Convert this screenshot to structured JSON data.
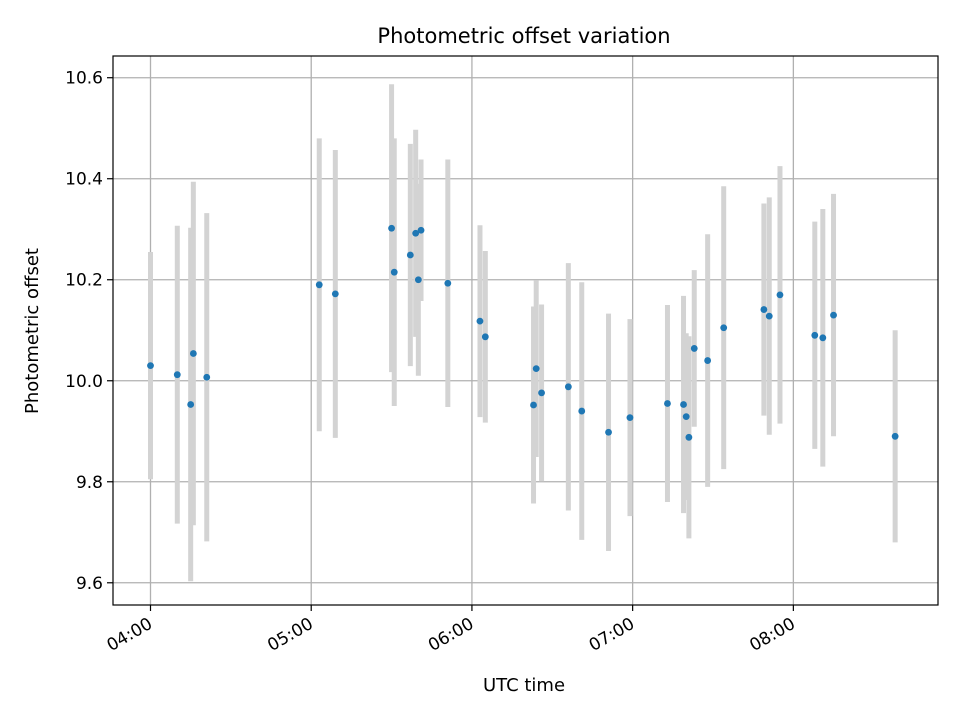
{
  "chart_data": {
    "type": "scatter",
    "title": "Photometric offset variation",
    "xlabel": "UTC time",
    "ylabel": "Photometric offset",
    "x_ticks": [
      "04:00",
      "05:00",
      "06:00",
      "07:00",
      "08:00"
    ],
    "x_tick_minutes": [
      240,
      300,
      360,
      420,
      480
    ],
    "y_ticks": [
      "9.6",
      "9.8",
      "10.0",
      "10.2",
      "10.4",
      "10.6"
    ],
    "y_tick_values": [
      9.6,
      9.8,
      10.0,
      10.2,
      10.4,
      10.6
    ],
    "xlim": [
      "03:46",
      "08:54"
    ],
    "ylim": [
      9.556,
      10.643
    ],
    "grid": true,
    "colors": {
      "point": "#1f77b4",
      "errorbar": "#d3d3d3",
      "grid": "#b0b0b0",
      "axis": "#000000"
    },
    "series": [
      {
        "points": [
          {
            "x": "04:00",
            "y": 10.03,
            "err": 0.225
          },
          {
            "x": "04:10",
            "y": 10.012,
            "err": 0.295
          },
          {
            "x": "04:15",
            "y": 9.953,
            "err": 0.35
          },
          {
            "x": "04:16",
            "y": 10.054,
            "err": 0.34
          },
          {
            "x": "04:21",
            "y": 10.007,
            "err": 0.325
          },
          {
            "x": "05:03",
            "y": 10.19,
            "err": 0.29
          },
          {
            "x": "05:09",
            "y": 10.172,
            "err": 0.285
          },
          {
            "x": "05:30",
            "y": 10.302,
            "err": 0.285
          },
          {
            "x": "05:31",
            "y": 10.215,
            "err": 0.265
          },
          {
            "x": "05:37",
            "y": 10.249,
            "err": 0.22
          },
          {
            "x": "05:39",
            "y": 10.292,
            "err": 0.205
          },
          {
            "x": "05:40",
            "y": 10.2,
            "err": 0.19
          },
          {
            "x": "05:41",
            "y": 10.298,
            "err": 0.14
          },
          {
            "x": "05:51",
            "y": 10.193,
            "err": 0.245
          },
          {
            "x": "06:03",
            "y": 10.118,
            "err": 0.19
          },
          {
            "x": "06:05",
            "y": 10.087,
            "err": 0.17
          },
          {
            "x": "06:23",
            "y": 9.952,
            "err": 0.195
          },
          {
            "x": "06:24",
            "y": 10.024,
            "err": 0.175
          },
          {
            "x": "06:26",
            "y": 9.976,
            "err": 0.175
          },
          {
            "x": "06:36",
            "y": 9.988,
            "err": 0.245
          },
          {
            "x": "06:41",
            "y": 9.94,
            "err": 0.255
          },
          {
            "x": "06:51",
            "y": 9.898,
            "err": 0.235
          },
          {
            "x": "06:59",
            "y": 9.927,
            "err": 0.195
          },
          {
            "x": "07:13",
            "y": 9.955,
            "err": 0.195
          },
          {
            "x": "07:19",
            "y": 9.953,
            "err": 0.215
          },
          {
            "x": "07:20",
            "y": 9.929,
            "err": 0.165
          },
          {
            "x": "07:21",
            "y": 9.888,
            "err": 0.2
          },
          {
            "x": "07:23",
            "y": 10.064,
            "err": 0.155
          },
          {
            "x": "07:28",
            "y": 10.04,
            "err": 0.25
          },
          {
            "x": "07:34",
            "y": 10.105,
            "err": 0.28
          },
          {
            "x": "07:49",
            "y": 10.141,
            "err": 0.21
          },
          {
            "x": "07:51",
            "y": 10.128,
            "err": 0.235
          },
          {
            "x": "07:55",
            "y": 10.17,
            "err": 0.255
          },
          {
            "x": "08:08",
            "y": 10.09,
            "err": 0.225
          },
          {
            "x": "08:11",
            "y": 10.085,
            "err": 0.255
          },
          {
            "x": "08:15",
            "y": 10.13,
            "err": 0.24
          },
          {
            "x": "08:38",
            "y": 9.89,
            "err": 0.21
          }
        ]
      }
    ]
  }
}
